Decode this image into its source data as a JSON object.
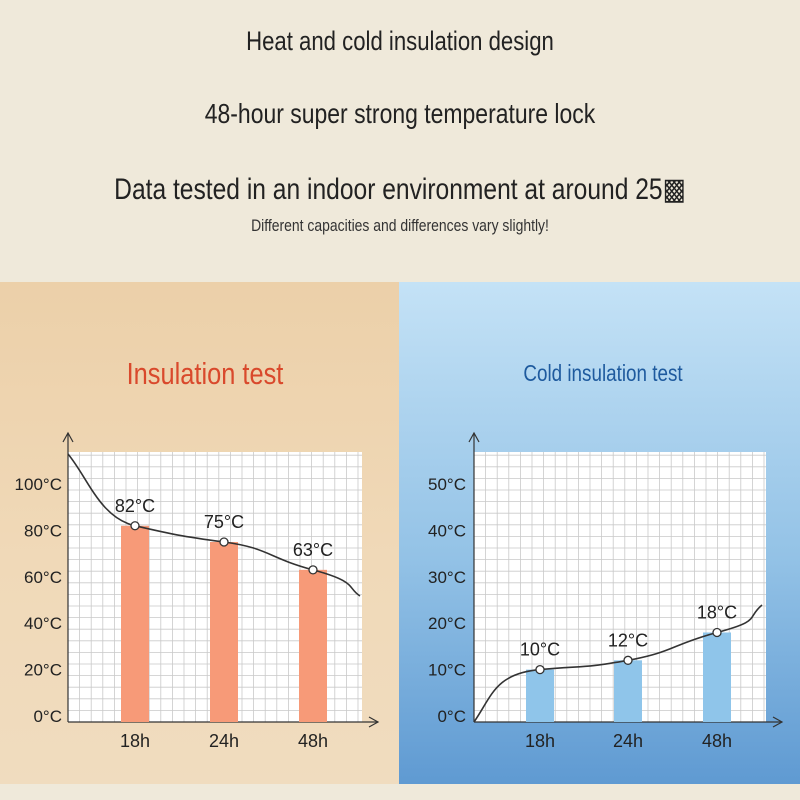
{
  "header": {
    "title": "Heat and cold insulation design",
    "subtitle": "48-hour super strong temperature lock",
    "note": "Data tested in an indoor environment at around 25▩",
    "disclaimer": "Different capacities and differences vary slightly!"
  },
  "colors": {
    "heat_title": "#d9492c",
    "cold_title": "#1e5a9e",
    "heat_bar": "#f79a78",
    "cold_bar": "#8fc5ea",
    "curve": "#333333"
  },
  "chart_data": [
    {
      "type": "bar",
      "title": "Insulation test",
      "categories": [
        "18h",
        "24h",
        "48h"
      ],
      "values": [
        82,
        75,
        63
      ],
      "data_labels": [
        "82°C",
        "75°C",
        "63°C"
      ],
      "y_ticks": [
        "0°C",
        "20°C",
        "40°C",
        "60°C",
        "80°C",
        "100°C"
      ],
      "ylim": [
        0,
        100
      ],
      "grid": true,
      "curve": true
    },
    {
      "type": "bar",
      "title": "Cold insulation test",
      "categories": [
        "18h",
        "24h",
        "48h"
      ],
      "values": [
        10,
        12,
        18
      ],
      "data_labels": [
        "10°C",
        "12°C",
        "18°C"
      ],
      "y_ticks": [
        "0°C",
        "10°C",
        "20°C",
        "30°C",
        "40°C",
        "50°C"
      ],
      "ylim": [
        0,
        50
      ],
      "grid": true,
      "curve": true
    }
  ]
}
